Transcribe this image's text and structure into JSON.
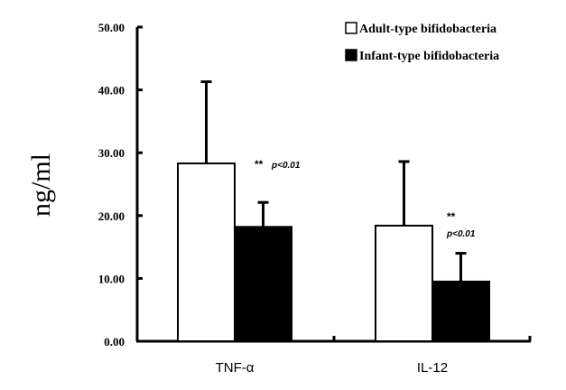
{
  "chart_data": {
    "type": "bar",
    "title": "",
    "xlabel": "",
    "ylabel": "ng/ml",
    "ylim": [
      0,
      50
    ],
    "yticks": [
      "0.00",
      "10.00",
      "20.00",
      "30.00",
      "40.00",
      "50.00"
    ],
    "categories": [
      "TNF-α",
      "IL-12"
    ],
    "series": [
      {
        "name": "Adult-type bifidobacteria",
        "color": "#ffffff",
        "values": [
          28.3,
          18.4
        ],
        "error": [
          13.0,
          10.2
        ]
      },
      {
        "name": "Infant-type bifidobacteria",
        "color": "#000000",
        "values": [
          18.2,
          9.5
        ],
        "error": [
          3.9,
          4.5
        ]
      }
    ],
    "annotations": [
      {
        "category": "TNF-α",
        "stars": "**",
        "p_text": "p<0.01"
      },
      {
        "category": "IL-12",
        "stars": "**",
        "p_text": "p<0.01"
      }
    ],
    "legend_position": "top-right",
    "grid": false
  }
}
